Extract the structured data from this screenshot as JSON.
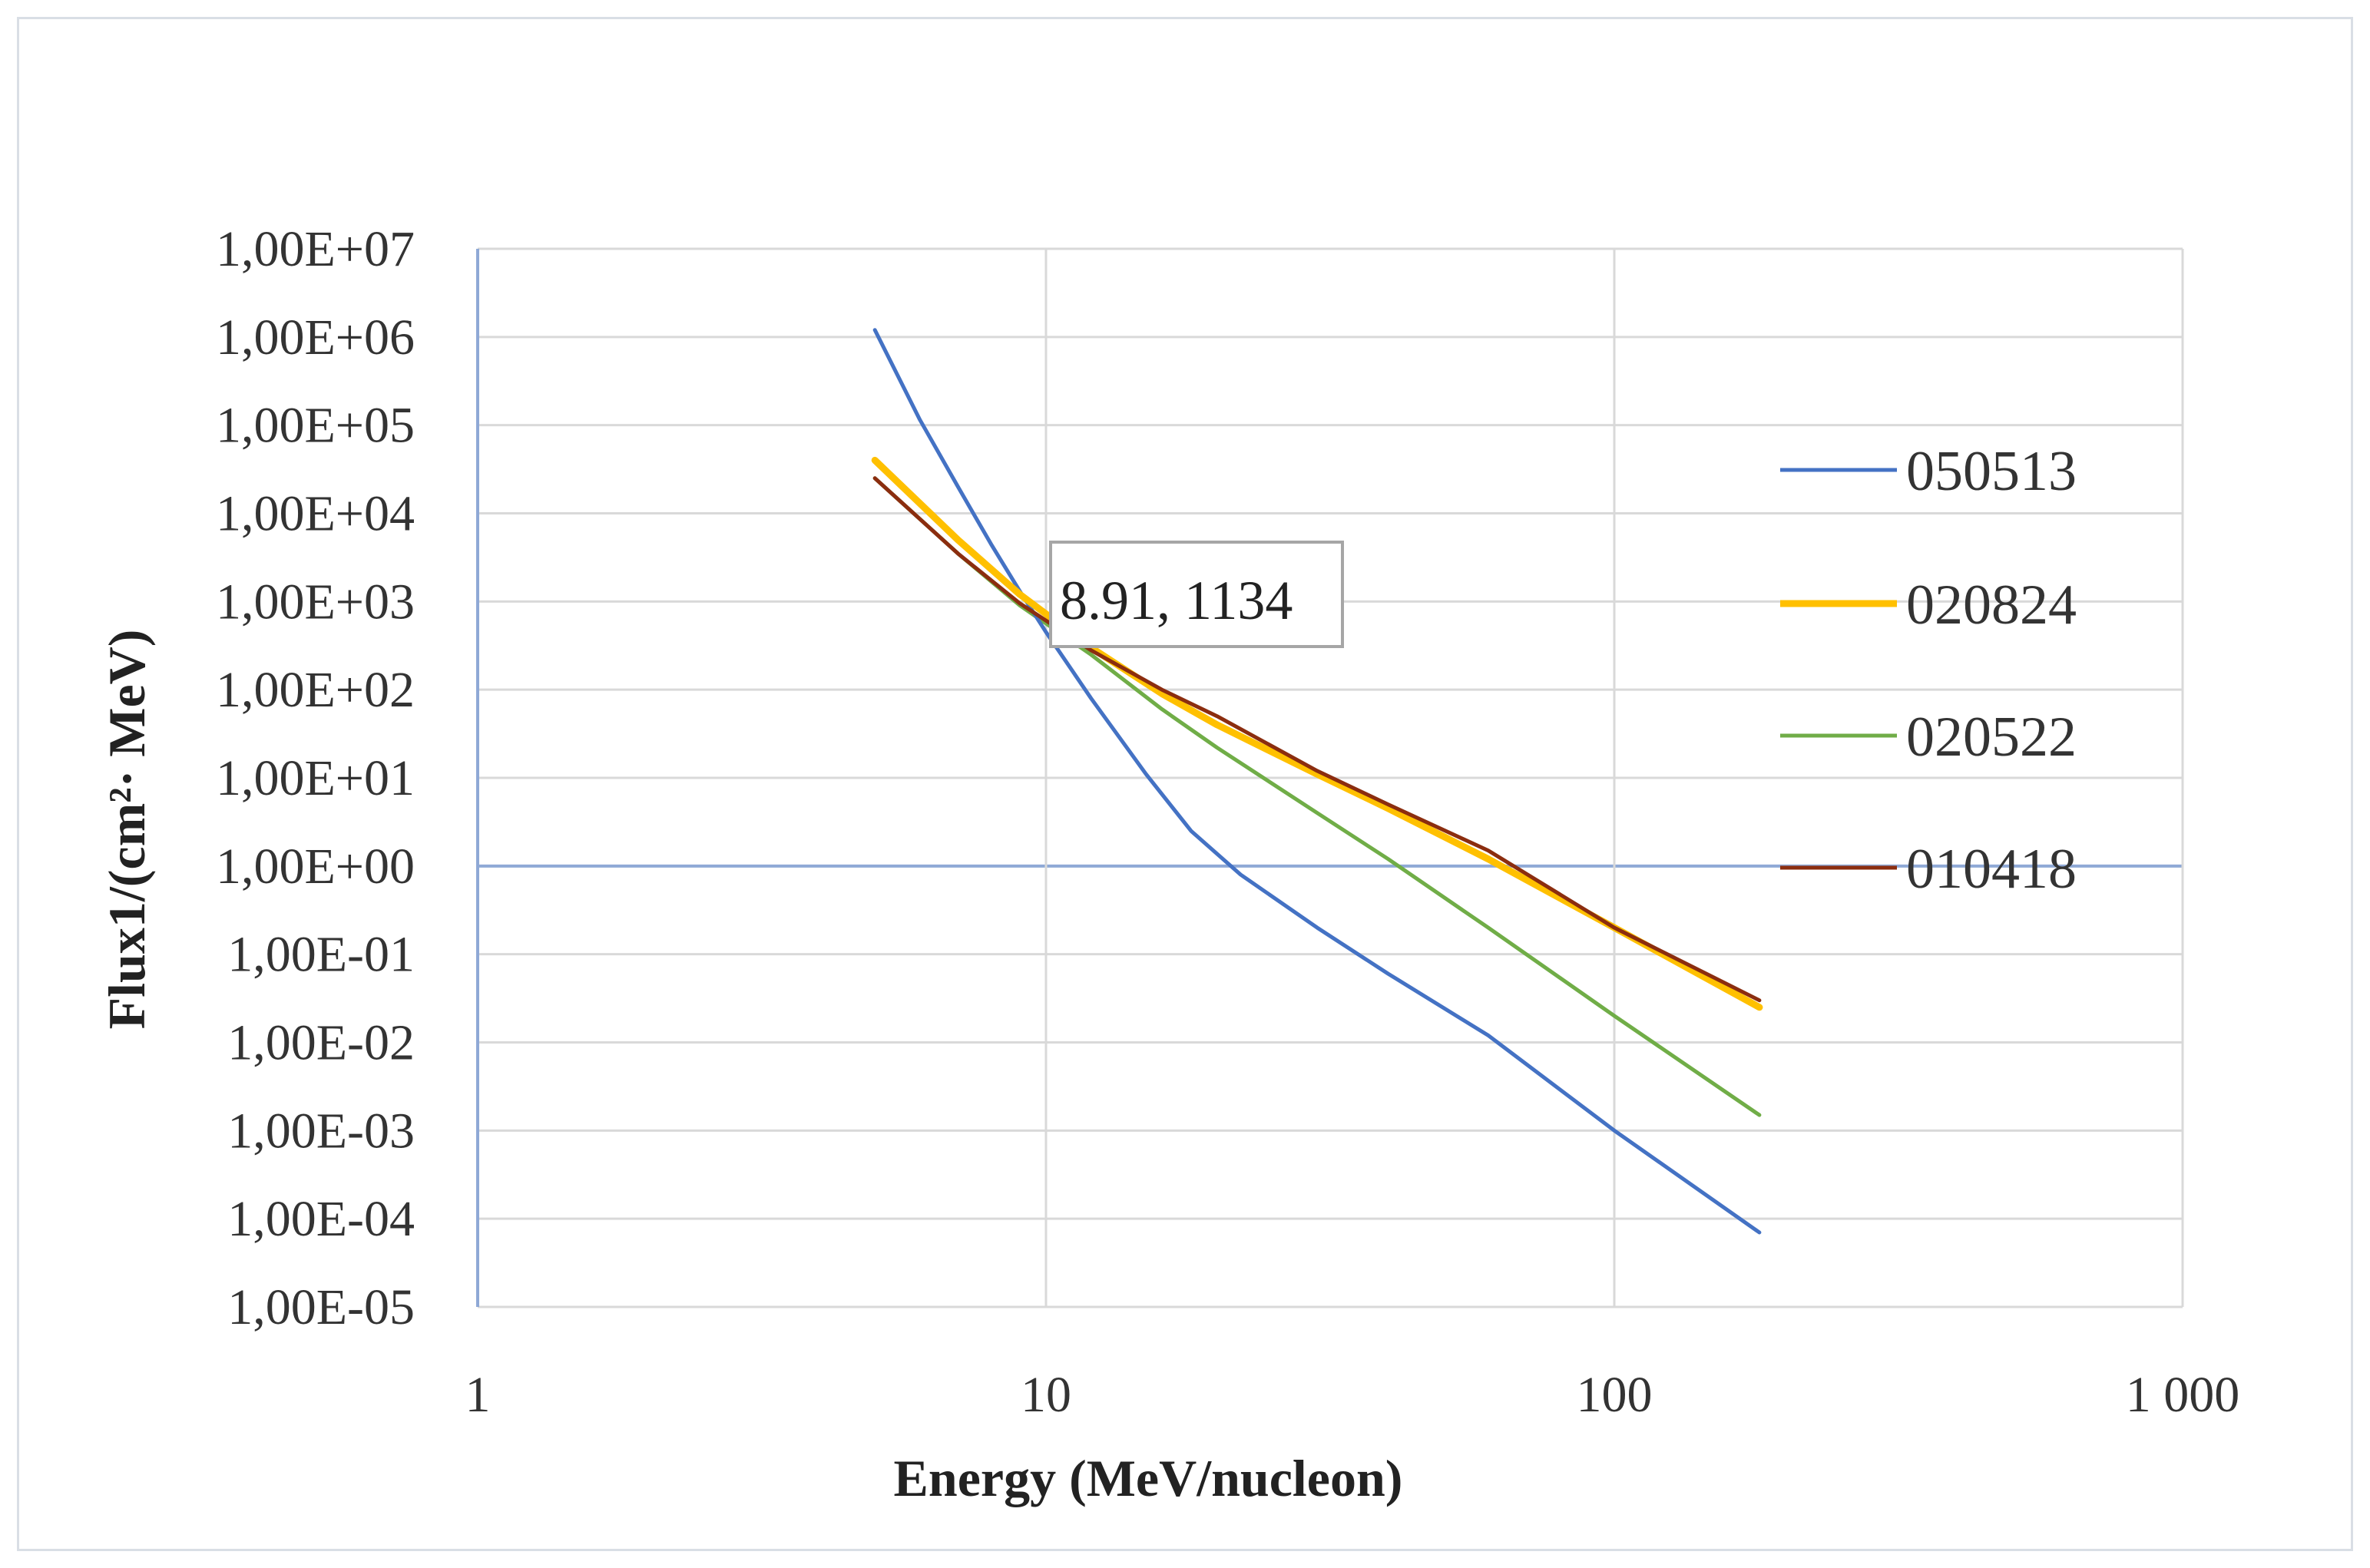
{
  "chart_data": {
    "type": "line",
    "xlabel": "Energy (MeV/nucleon)",
    "ylabel": "Flux1/(cm²· MeV)",
    "x_scale": "log",
    "y_scale": "log",
    "xlim": [
      1,
      1000
    ],
    "ylim": [
      1e-05,
      10000000.0
    ],
    "grid": true,
    "legend_position": "right",
    "x_ticks": [
      1,
      10,
      100,
      1000
    ],
    "x_tick_labels": [
      "1",
      "10",
      "100",
      "1 000"
    ],
    "y_ticks": [
      10000000.0,
      1000000.0,
      100000.0,
      10000.0,
      1000.0,
      100.0,
      10.0,
      1.0,
      0.1,
      0.01,
      0.001,
      0.0001,
      1e-05
    ],
    "y_tick_labels": [
      "1,00E+07",
      "1,00E+06",
      "1,00E+05",
      "1,00E+04",
      "1,00E+03",
      "1,00E+02",
      "1,00E+01",
      "1,00E+00",
      "1,00E-01",
      "1,00E-02",
      "1,00E-03",
      "1,00E-04",
      "1,00E-05"
    ],
    "series": [
      {
        "name": "050513",
        "color": "#4472C4",
        "x": [
          5,
          6,
          7,
          8,
          9,
          10,
          12,
          15,
          18,
          22,
          30,
          40,
          60,
          100,
          180
        ],
        "y": [
          1200000,
          115000,
          20000,
          4500,
          1300,
          450,
          80,
          11,
          2.5,
          0.8,
          0.2,
          0.06,
          0.012,
          0.001,
          7e-05
        ]
      },
      {
        "name": "020824",
        "color": "#FFC000",
        "x": [
          5,
          7,
          9,
          12,
          16,
          20,
          30,
          40,
          60,
          100,
          180
        ],
        "y": [
          40000,
          5000,
          1200,
          300,
          90,
          40,
          11,
          4.5,
          1.2,
          0.2,
          0.025
        ]
      },
      {
        "name": "020522",
        "color": "#70AD47",
        "x": [
          5,
          7,
          9,
          12,
          16,
          20,
          30,
          40,
          60,
          100,
          180
        ],
        "y": [
          25000,
          3500,
          900,
          250,
          60,
          22,
          4,
          1.2,
          0.2,
          0.02,
          0.0015
        ]
      },
      {
        "name": "010418",
        "color": "#8B2D0F",
        "x": [
          5,
          7,
          9,
          12,
          16,
          20,
          30,
          40,
          60,
          100,
          180
        ],
        "y": [
          25000,
          3500,
          950,
          280,
          100,
          50,
          12,
          5,
          1.5,
          0.2,
          0.03
        ]
      }
    ],
    "annotation": {
      "text": "8.91, 1134",
      "x": 8.91,
      "y": 1134
    }
  }
}
